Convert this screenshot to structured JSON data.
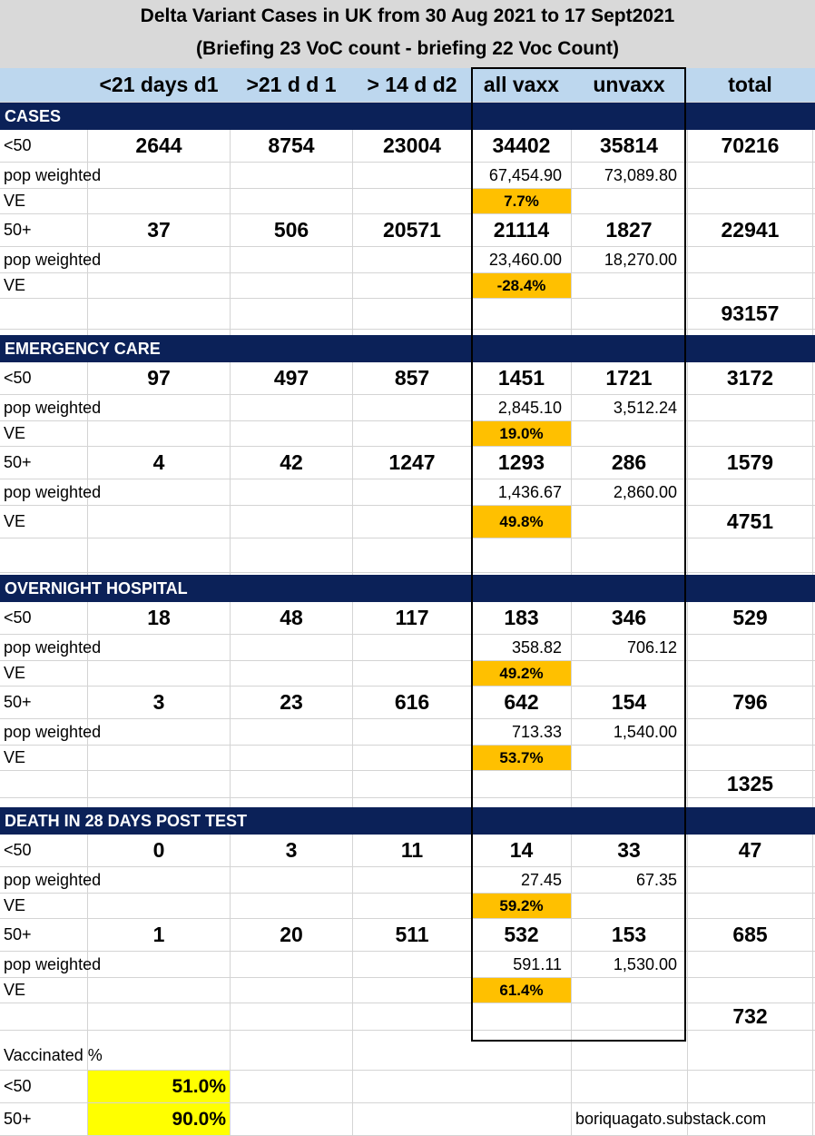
{
  "title": {
    "line1": "Delta Variant Cases in UK from 30 Aug 2021 to 17 Sept2021",
    "line2": "(Briefing 23 VoC count - briefing 22 Voc Count)"
  },
  "columns": [
    "<21 days d1",
    ">21 d d 1",
    "> 14 d d2",
    "all vaxx",
    "unvaxx",
    "total"
  ],
  "labels": {
    "under50": "<50",
    "over50": "50+",
    "pop_weighted": "pop weighted",
    "ve": "VE"
  },
  "sections": {
    "cases": {
      "title": "CASES",
      "under50": {
        "d1_lt21": "2644",
        "d1_gt21": "8754",
        "d2_gt14": "23004",
        "all_vaxx": "34402",
        "unvaxx": "35814",
        "total": "70216",
        "pw_vaxx": "67,454.90",
        "pw_unvaxx": "73,089.80",
        "ve": "7.7%"
      },
      "over50": {
        "d1_lt21": "37",
        "d1_gt21": "506",
        "d2_gt14": "20571",
        "all_vaxx": "21114",
        "unvaxx": "1827",
        "total": "22941",
        "pw_vaxx": "23,460.00",
        "pw_unvaxx": "18,270.00",
        "ve": "-28.4%"
      },
      "grand_total": "93157"
    },
    "emergency": {
      "title": "EMERGENCY CARE",
      "under50": {
        "d1_lt21": "97",
        "d1_gt21": "497",
        "d2_gt14": "857",
        "all_vaxx": "1451",
        "unvaxx": "1721",
        "total": "3172",
        "pw_vaxx": "2,845.10",
        "pw_unvaxx": "3,512.24",
        "ve": "19.0%"
      },
      "over50": {
        "d1_lt21": "4",
        "d1_gt21": "42",
        "d2_gt14": "1247",
        "all_vaxx": "1293",
        "unvaxx": "286",
        "total": "1579",
        "pw_vaxx": "1,436.67",
        "pw_unvaxx": "2,860.00",
        "ve": "49.8%"
      },
      "grand_total": "4751"
    },
    "hospital": {
      "title": "OVERNIGHT HOSPITAL",
      "under50": {
        "d1_lt21": "18",
        "d1_gt21": "48",
        "d2_gt14": "117",
        "all_vaxx": "183",
        "unvaxx": "346",
        "total": "529",
        "pw_vaxx": "358.82",
        "pw_unvaxx": "706.12",
        "ve": "49.2%"
      },
      "over50": {
        "d1_lt21": "3",
        "d1_gt21": "23",
        "d2_gt14": "616",
        "all_vaxx": "642",
        "unvaxx": "154",
        "total": "796",
        "pw_vaxx": "713.33",
        "pw_unvaxx": "1,540.00",
        "ve": "53.7%"
      },
      "grand_total": "1325"
    },
    "death": {
      "title": "DEATH IN 28 DAYS POST TEST",
      "under50": {
        "d1_lt21": "0",
        "d1_gt21": "3",
        "d2_gt14": "11",
        "all_vaxx": "14",
        "unvaxx": "33",
        "total": "47",
        "pw_vaxx": "27.45",
        "pw_unvaxx": "67.35",
        "ve": "59.2%"
      },
      "over50": {
        "d1_lt21": "1",
        "d1_gt21": "20",
        "d2_gt14": "511",
        "all_vaxx": "532",
        "unvaxx": "153",
        "total": "685",
        "pw_vaxx": "591.11",
        "pw_unvaxx": "1,530.00",
        "ve": "61.4%"
      },
      "grand_total": "732"
    }
  },
  "vaccinated": {
    "label": "Vaccinated %",
    "under50_label": "<50",
    "under50": "51.0%",
    "over50_label": "50+",
    "over50": "90.0%"
  },
  "credit": "boriquagato.substack.com",
  "colors": {
    "header_band": "#bdd7ee",
    "section_band": "#0b2158",
    "ve_highlight": "#ffc000",
    "vax_highlight": "#ffff00"
  }
}
